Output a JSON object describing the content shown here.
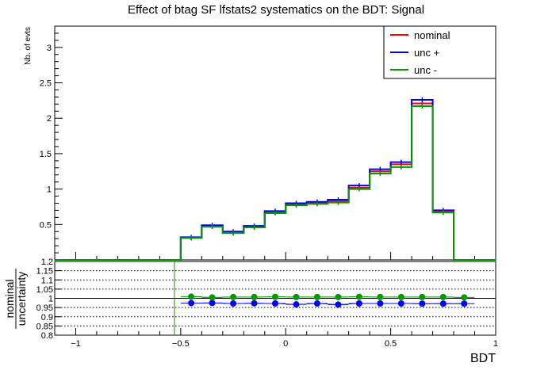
{
  "chart_data": [
    {
      "type": "histogram",
      "title": "Effect of btag SF lfstats2 systematics on the BDT: Signal",
      "ylabel": "Nb. of evts",
      "xlim": [
        -1.1,
        1.0
      ],
      "ylim": [
        0.0,
        3.3
      ],
      "grid": false,
      "legend_position": "top-right",
      "bin_edges": [
        -1.1,
        -1.0,
        -0.9,
        -0.8,
        -0.7,
        -0.6,
        -0.5,
        -0.4,
        -0.3,
        -0.2,
        -0.1,
        0.0,
        0.1,
        0.2,
        0.3,
        0.4,
        0.5,
        0.6,
        0.7,
        0.8,
        0.9,
        1.0
      ],
      "y_ticks": [
        {
          "value": 0.5,
          "label": "0.5"
        },
        {
          "value": 1.0,
          "label": "1"
        },
        {
          "value": 1.5,
          "label": "1.5"
        },
        {
          "value": 2.0,
          "label": "2"
        },
        {
          "value": 2.5,
          "label": "2.5"
        },
        {
          "value": 3.0,
          "label": "3"
        }
      ],
      "series": [
        {
          "name": "nominal",
          "color": "#ff0000",
          "values": [
            0,
            0,
            0,
            0,
            0,
            0,
            0.31,
            0.47,
            0.38,
            0.46,
            0.67,
            0.78,
            0.8,
            0.83,
            1.02,
            1.25,
            1.35,
            2.21,
            0.68,
            0,
            0
          ]
        },
        {
          "name": "unc +",
          "color": "#0000ff",
          "values": [
            0,
            0,
            0,
            0,
            0,
            0,
            0.32,
            0.49,
            0.4,
            0.48,
            0.69,
            0.8,
            0.82,
            0.85,
            1.05,
            1.28,
            1.38,
            2.26,
            0.7,
            0,
            0
          ]
        },
        {
          "name": "unc -",
          "color": "#009900",
          "values": [
            0,
            0,
            0,
            0,
            0,
            0,
            0.31,
            0.47,
            0.38,
            0.46,
            0.66,
            0.77,
            0.79,
            0.81,
            1.0,
            1.22,
            1.31,
            2.17,
            0.67,
            0,
            0
          ]
        }
      ]
    },
    {
      "type": "scatter",
      "xlabel": "BDT",
      "ylabel_top": "nominal",
      "ylabel_bottom": "uncertainty",
      "xlim": [
        -1.1,
        1.0
      ],
      "ylim": [
        0.8,
        1.2
      ],
      "x_ticks": [
        {
          "value": -1.0,
          "label": "−1"
        },
        {
          "value": -0.5,
          "label": "−0.5"
        },
        {
          "value": 0.0,
          "label": "0"
        },
        {
          "value": 0.5,
          "label": "0.5"
        },
        {
          "value": 1.0,
          "label": "1"
        }
      ],
      "y_ticks": [
        {
          "value": 0.8,
          "label": "0.8"
        },
        {
          "value": 0.85,
          "label": "0.85"
        },
        {
          "value": 0.9,
          "label": "0.9"
        },
        {
          "value": 0.95,
          "label": "0.95"
        },
        {
          "value": 1.0,
          "label": "1"
        },
        {
          "value": 1.05,
          "label": "1.05"
        },
        {
          "value": 1.1,
          "label": "1.1"
        },
        {
          "value": 1.15,
          "label": "1.15"
        },
        {
          "value": 1.2,
          "label": "1.2"
        }
      ],
      "reference_line": 1.0,
      "x": [
        -0.45,
        -0.35,
        -0.25,
        -0.15,
        -0.05,
        0.05,
        0.15,
        0.25,
        0.35,
        0.45,
        0.55,
        0.65,
        0.75,
        0.85
      ],
      "series": [
        {
          "name": "unc +",
          "color": "#0000ff",
          "values": [
            0.974,
            0.975,
            0.972,
            0.973,
            0.972,
            0.967,
            0.972,
            0.966,
            0.972,
            0.972,
            0.972,
            0.971,
            0.971,
            0.971
          ]
        },
        {
          "name": "unc -",
          "color": "#009900",
          "values": [
            1.009,
            1.005,
            1.007,
            1.007,
            1.008,
            1.007,
            1.007,
            1.007,
            1.008,
            1.007,
            1.007,
            1.007,
            1.007,
            1.005
          ]
        }
      ]
    }
  ]
}
